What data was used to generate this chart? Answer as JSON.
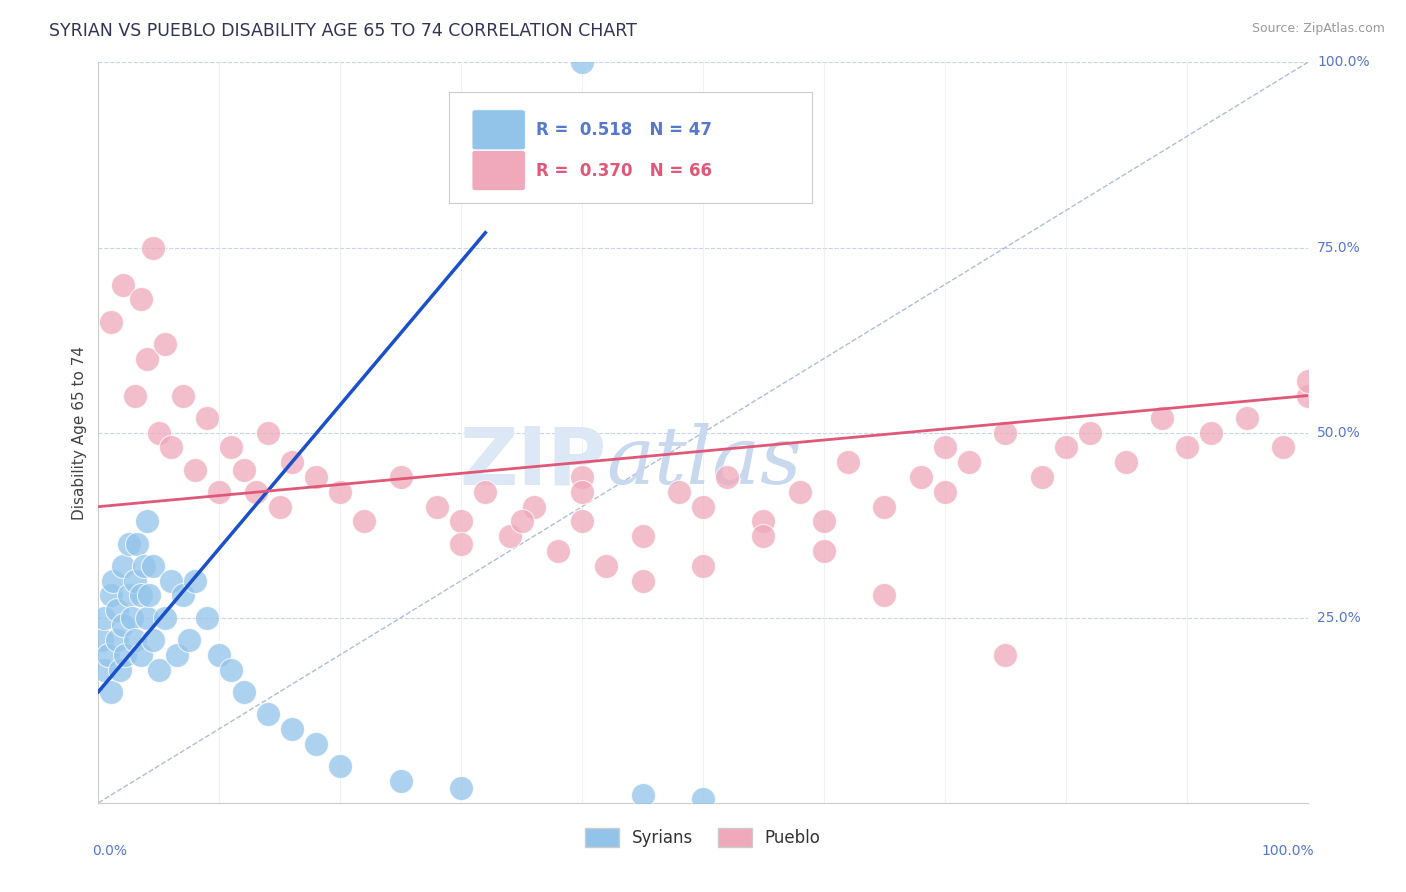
{
  "title": "SYRIAN VS PUEBLO DISABILITY AGE 65 TO 74 CORRELATION CHART",
  "ylabel": "Disability Age 65 to 74",
  "source": "Source: ZipAtlas.com",
  "syrians_R": 0.518,
  "syrians_N": 47,
  "pueblo_R": 0.37,
  "pueblo_N": 66,
  "syrians_color": "#92c4ea",
  "pueblo_color": "#f0a8bb",
  "syrians_line_color": "#1a50c8",
  "pueblo_line_color": "#e05878",
  "title_color": "#333355",
  "axis_label_color": "#5577cc",
  "watermark_color": "#dce8f5",
  "background_color": "#ffffff",
  "grid_color": "#c8d4e8",
  "syrians_x": [
    0.3,
    0.5,
    0.5,
    0.8,
    1.0,
    1.0,
    1.2,
    1.5,
    1.5,
    1.8,
    2.0,
    2.0,
    2.2,
    2.5,
    2.5,
    2.8,
    3.0,
    3.0,
    3.2,
    3.5,
    3.5,
    3.8,
    4.0,
    4.0,
    4.2,
    4.5,
    4.5,
    5.0,
    5.5,
    6.0,
    6.5,
    7.0,
    7.5,
    8.0,
    9.0,
    10.0,
    11.0,
    12.0,
    14.0,
    16.0,
    18.0,
    20.0,
    25.0,
    30.0,
    40.0,
    45.0,
    50.0
  ],
  "syrians_y": [
    22,
    18,
    25,
    20,
    28,
    15,
    30,
    22,
    26,
    18,
    24,
    32,
    20,
    28,
    35,
    25,
    30,
    22,
    35,
    28,
    20,
    32,
    25,
    38,
    28,
    22,
    32,
    18,
    25,
    30,
    20,
    28,
    22,
    30,
    25,
    20,
    18,
    15,
    12,
    10,
    8,
    5,
    3,
    2,
    100,
    1,
    0.5
  ],
  "pueblo_x": [
    1,
    2,
    3,
    3.5,
    4,
    4.5,
    5,
    5.5,
    6,
    7,
    8,
    9,
    10,
    11,
    12,
    13,
    14,
    15,
    16,
    18,
    20,
    22,
    25,
    28,
    30,
    32,
    34,
    36,
    38,
    40,
    40,
    42,
    45,
    48,
    50,
    52,
    55,
    58,
    60,
    62,
    65,
    68,
    70,
    72,
    75,
    78,
    80,
    82,
    85,
    88,
    90,
    92,
    95,
    98,
    100,
    100,
    30,
    35,
    40,
    45,
    50,
    55,
    60,
    65,
    70,
    75
  ],
  "pueblo_y": [
    65,
    70,
    55,
    68,
    60,
    75,
    50,
    62,
    48,
    55,
    45,
    52,
    42,
    48,
    45,
    42,
    50,
    40,
    46,
    44,
    42,
    38,
    44,
    40,
    38,
    42,
    36,
    40,
    34,
    38,
    44,
    32,
    36,
    42,
    40,
    44,
    38,
    42,
    34,
    46,
    40,
    44,
    48,
    46,
    50,
    44,
    48,
    50,
    46,
    52,
    48,
    50,
    52,
    48,
    55,
    57,
    35,
    38,
    42,
    30,
    32,
    36,
    38,
    28,
    42,
    20
  ],
  "blue_line_x0": 0,
  "blue_line_x1": 32,
  "blue_line_y0": 15,
  "blue_line_y1": 77,
  "pink_line_x0": 0,
  "pink_line_x1": 100,
  "pink_line_y0": 40,
  "pink_line_y1": 55,
  "diag_line_x": [
    0,
    100
  ],
  "diag_line_y": [
    0,
    100
  ],
  "xlim": [
    0,
    100
  ],
  "ylim": [
    0,
    100
  ],
  "ytick_labels": [
    "100.0%",
    "75.0%",
    "50.0%",
    "25.0%"
  ],
  "ytick_pos": [
    100,
    75,
    50,
    25
  ]
}
